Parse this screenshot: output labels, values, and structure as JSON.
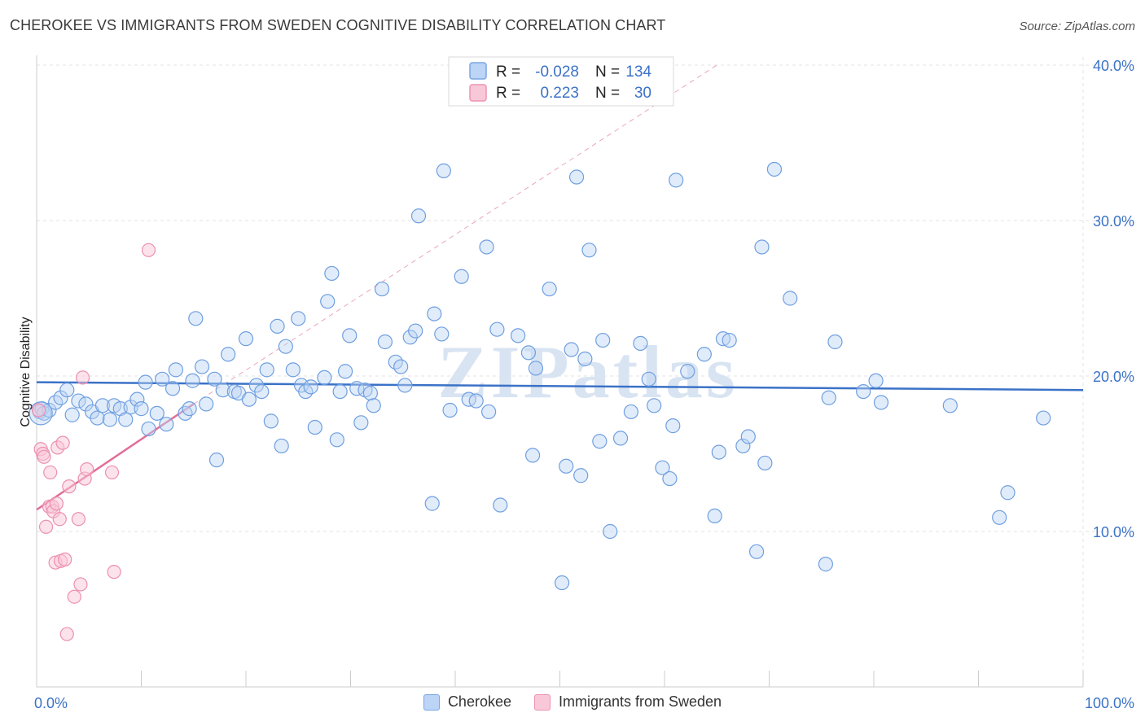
{
  "header": {
    "title": "CHEROKEE VS IMMIGRANTS FROM SWEDEN COGNITIVE DISABILITY CORRELATION CHART",
    "source": "Source: ZipAtlas.com"
  },
  "watermark": "ZIPatlas",
  "chart_data": {
    "type": "scatter",
    "ylabel": "Cognitive Disability",
    "xlim": [
      0,
      100
    ],
    "ylim": [
      0,
      40
    ],
    "x_tick_labels": [
      "0.0%",
      "100.0%"
    ],
    "y_ticks": [
      10,
      20,
      30,
      40
    ],
    "y_tick_labels": [
      "10.0%",
      "20.0%",
      "30.0%",
      "40.0%"
    ],
    "grid": true,
    "legend_position": "top-center",
    "colors": {
      "cherokee": "#3b72c7",
      "cherokee_fill": "#bcd4f5",
      "sweden": "#e26d98",
      "sweden_fill": "#f9c8d8"
    },
    "stats": [
      {
        "r_label": "R =",
        "r_value": "-0.028",
        "n_label": "N =",
        "n_value": "134"
      },
      {
        "r_label": "R =",
        "r_value": "0.223",
        "n_label": "N =",
        "n_value": "30"
      }
    ],
    "series": [
      {
        "name": "Cherokee",
        "trend": {
          "x": [
            0,
            100
          ],
          "y": [
            19.6,
            19.1
          ]
        },
        "points": [
          [
            0.3,
            17.7
          ],
          [
            0.5,
            17.9
          ],
          [
            0.7,
            17.6
          ],
          [
            1.2,
            17.8
          ],
          [
            1.8,
            18.3
          ],
          [
            2.3,
            18.6
          ],
          [
            2.9,
            19.1
          ],
          [
            3.4,
            17.5
          ],
          [
            4.0,
            18.4
          ],
          [
            4.7,
            18.2
          ],
          [
            5.3,
            17.7
          ],
          [
            5.8,
            17.3
          ],
          [
            6.3,
            18.1
          ],
          [
            7.0,
            17.2
          ],
          [
            7.4,
            18.1
          ],
          [
            8.0,
            17.9
          ],
          [
            8.5,
            17.2
          ],
          [
            9.0,
            18.0
          ],
          [
            9.6,
            18.5
          ],
          [
            10.0,
            17.9
          ],
          [
            10.4,
            19.6
          ],
          [
            10.7,
            16.6
          ],
          [
            11.5,
            17.6
          ],
          [
            12.0,
            19.8
          ],
          [
            12.4,
            16.9
          ],
          [
            13.0,
            19.2
          ],
          [
            13.3,
            20.4
          ],
          [
            14.2,
            17.6
          ],
          [
            14.6,
            17.9
          ],
          [
            14.9,
            19.7
          ],
          [
            15.2,
            23.7
          ],
          [
            15.8,
            20.6
          ],
          [
            16.2,
            18.2
          ],
          [
            17.0,
            19.8
          ],
          [
            17.2,
            14.6
          ],
          [
            17.8,
            19.1
          ],
          [
            18.3,
            21.4
          ],
          [
            18.9,
            19.0
          ],
          [
            19.3,
            18.9
          ],
          [
            20.0,
            22.4
          ],
          [
            20.3,
            18.5
          ],
          [
            21.0,
            19.4
          ],
          [
            21.5,
            19.0
          ],
          [
            22.0,
            20.4
          ],
          [
            22.4,
            17.1
          ],
          [
            23.0,
            23.2
          ],
          [
            23.4,
            15.5
          ],
          [
            23.8,
            21.9
          ],
          [
            24.5,
            20.4
          ],
          [
            25.0,
            23.7
          ],
          [
            25.3,
            19.4
          ],
          [
            25.7,
            19.0
          ],
          [
            26.2,
            19.3
          ],
          [
            26.6,
            16.7
          ],
          [
            27.5,
            19.9
          ],
          [
            27.8,
            24.8
          ],
          [
            28.2,
            26.6
          ],
          [
            28.7,
            15.9
          ],
          [
            29.0,
            19.0
          ],
          [
            29.5,
            20.3
          ],
          [
            29.9,
            22.6
          ],
          [
            30.6,
            19.2
          ],
          [
            31.0,
            17.0
          ],
          [
            31.4,
            19.1
          ],
          [
            31.9,
            18.9
          ],
          [
            32.2,
            18.1
          ],
          [
            33.0,
            25.6
          ],
          [
            33.3,
            22.2
          ],
          [
            34.3,
            20.9
          ],
          [
            34.8,
            20.6
          ],
          [
            35.2,
            19.4
          ],
          [
            35.7,
            22.5
          ],
          [
            36.2,
            22.9
          ],
          [
            36.5,
            30.3
          ],
          [
            37.8,
            11.8
          ],
          [
            38.0,
            24.0
          ],
          [
            38.7,
            22.7
          ],
          [
            38.9,
            33.2
          ],
          [
            39.5,
            17.8
          ],
          [
            40.6,
            26.4
          ],
          [
            41.3,
            18.5
          ],
          [
            42.0,
            18.4
          ],
          [
            43.0,
            28.3
          ],
          [
            43.2,
            17.7
          ],
          [
            44.0,
            23.0
          ],
          [
            44.3,
            11.7
          ],
          [
            46.0,
            22.6
          ],
          [
            47.0,
            21.5
          ],
          [
            47.4,
            14.9
          ],
          [
            47.7,
            20.5
          ],
          [
            49.0,
            25.6
          ],
          [
            50.2,
            6.7
          ],
          [
            50.6,
            14.2
          ],
          [
            51.1,
            21.7
          ],
          [
            51.6,
            32.8
          ],
          [
            52.0,
            13.6
          ],
          [
            52.4,
            21.1
          ],
          [
            52.8,
            28.1
          ],
          [
            53.8,
            15.8
          ],
          [
            54.1,
            22.3
          ],
          [
            54.8,
            10.0
          ],
          [
            55.8,
            16.0
          ],
          [
            56.8,
            17.7
          ],
          [
            57.7,
            22.1
          ],
          [
            58.5,
            19.8
          ],
          [
            59.0,
            18.1
          ],
          [
            59.8,
            14.1
          ],
          [
            60.5,
            13.4
          ],
          [
            60.8,
            16.8
          ],
          [
            61.1,
            32.6
          ],
          [
            62.2,
            20.3
          ],
          [
            63.8,
            21.4
          ],
          [
            64.8,
            11.0
          ],
          [
            65.2,
            15.1
          ],
          [
            65.6,
            22.4
          ],
          [
            66.2,
            22.3
          ],
          [
            67.5,
            15.5
          ],
          [
            68.0,
            16.1
          ],
          [
            68.8,
            8.7
          ],
          [
            69.3,
            28.3
          ],
          [
            69.6,
            14.4
          ],
          [
            70.5,
            33.3
          ],
          [
            72.0,
            25.0
          ],
          [
            75.4,
            7.9
          ],
          [
            75.7,
            18.6
          ],
          [
            76.3,
            22.2
          ],
          [
            79.0,
            19.0
          ],
          [
            80.2,
            19.7
          ],
          [
            80.7,
            18.3
          ],
          [
            87.3,
            18.1
          ],
          [
            92.0,
            10.9
          ],
          [
            92.8,
            12.5
          ],
          [
            96.2,
            17.3
          ]
        ]
      },
      {
        "name": "Immigrants from Sweden",
        "trend": {
          "x": [
            0,
            15
          ],
          "y": [
            11.4,
            18.2
          ]
        },
        "trend_extended": {
          "x": [
            15,
            65
          ],
          "y": [
            18.2,
            40.0
          ]
        },
        "points": [
          [
            0.2,
            17.8
          ],
          [
            0.4,
            15.3
          ],
          [
            0.6,
            15.0
          ],
          [
            0.7,
            14.8
          ],
          [
            0.9,
            10.3
          ],
          [
            1.2,
            11.6
          ],
          [
            1.3,
            13.8
          ],
          [
            1.5,
            11.6
          ],
          [
            1.6,
            11.3
          ],
          [
            1.8,
            8.0
          ],
          [
            1.9,
            11.8
          ],
          [
            2.0,
            15.4
          ],
          [
            2.2,
            10.8
          ],
          [
            2.3,
            8.1
          ],
          [
            2.5,
            15.7
          ],
          [
            2.7,
            8.2
          ],
          [
            2.9,
            3.4
          ],
          [
            3.1,
            12.9
          ],
          [
            3.6,
            5.8
          ],
          [
            4.0,
            10.8
          ],
          [
            4.2,
            6.6
          ],
          [
            4.4,
            19.9
          ],
          [
            4.6,
            13.4
          ],
          [
            4.8,
            14.0
          ],
          [
            7.2,
            13.8
          ],
          [
            7.4,
            7.4
          ],
          [
            10.7,
            28.1
          ]
        ]
      }
    ]
  }
}
